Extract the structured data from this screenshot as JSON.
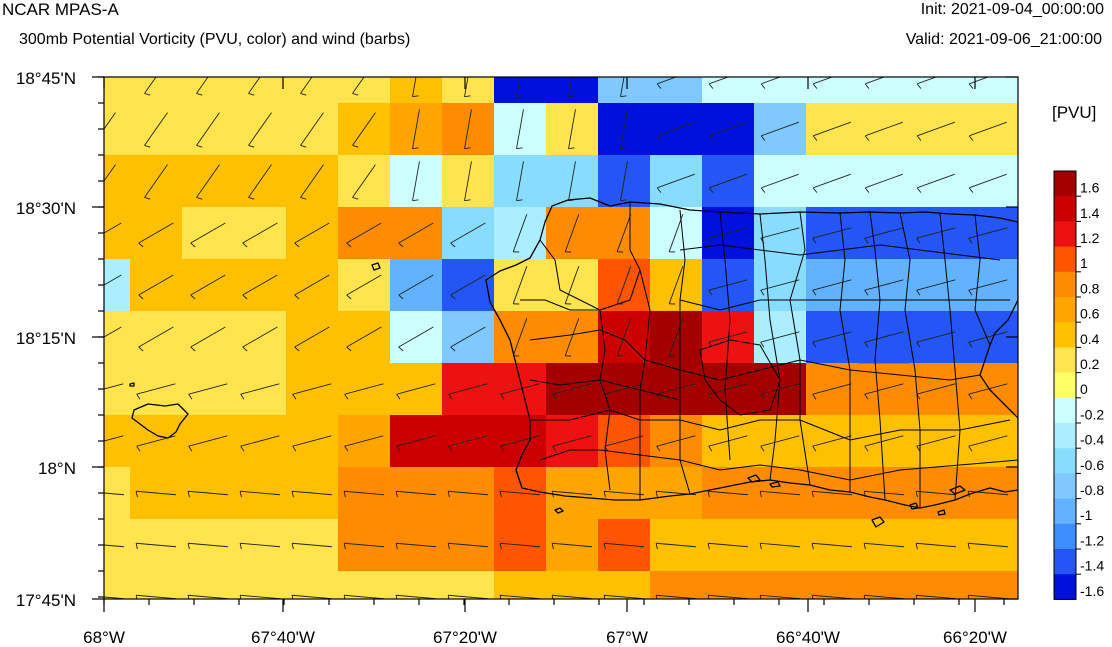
{
  "header": {
    "title": "NCAR MPAS-A",
    "subtitle": "300mb Potential Vorticity (PVU, color) and wind (barbs)",
    "init": "Init: 2021-09-04_00:00:00",
    "valid": "Valid: 2021-09-06_21:00:00"
  },
  "axes": {
    "lat_labels": [
      "18°45'N",
      "18°30'N",
      "18°15'N",
      "18°N",
      "17°45'N"
    ],
    "lon_labels": [
      "68°W",
      "67°40'W",
      "67°20'W",
      "67°W",
      "66°40'W",
      "66°20'W"
    ]
  },
  "colorbar": {
    "units": "[PVU]",
    "labels": [
      "1.6",
      "1.4",
      "1.2",
      "1",
      "0.8",
      "0.6",
      "0.4",
      "0.2",
      "0",
      "-0.2",
      "-0.4",
      "-0.6",
      "-0.8",
      "-1",
      "-1.2",
      "-1.4",
      "-1.6"
    ],
    "colors": [
      "#a50000",
      "#cc0000",
      "#ee1111",
      "#ff5500",
      "#ff8c00",
      "#ffa500",
      "#ffc000",
      "#ffe44d",
      "#ffff66",
      "#ccffff",
      "#aaeeff",
      "#88ddff",
      "#7fc9ff",
      "#62b2ff",
      "#3d8fff",
      "#2456f5",
      "#0010dd"
    ]
  },
  "map": {
    "grid_codes": [
      "88888878CCEE999",
      "8888875698CCCE8",
      "77777898AAFAF99",
      "7788766AB669CAF",
      "B77778DF8847FAD",
      "8888779E66213BF",
      "8888777331111166",
      "777775222346777",
      "87777666455566",
      "88888666454777",
      "88888888777666"
    ]
  }
}
